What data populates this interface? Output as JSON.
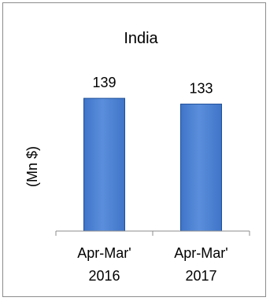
{
  "chart_data": {
    "type": "bar",
    "title": "India",
    "ylabel": "(Mn $)",
    "xlabel": "",
    "categories": [
      [
        "Apr-Mar'",
        "2016"
      ],
      [
        "Apr-Mar'",
        "2017"
      ]
    ],
    "values": [
      139,
      133
    ],
    "data_labels": [
      "139",
      "133"
    ],
    "ylim": [
      0,
      200
    ],
    "grid": false,
    "legend": "none",
    "colors": {
      "bar_top": "#5b8fdc",
      "bar_mid": "#3f74c8",
      "bar_edge": "#1f4f9a",
      "axis": "#8c8c8c",
      "frame": "#8c8c8c"
    }
  }
}
